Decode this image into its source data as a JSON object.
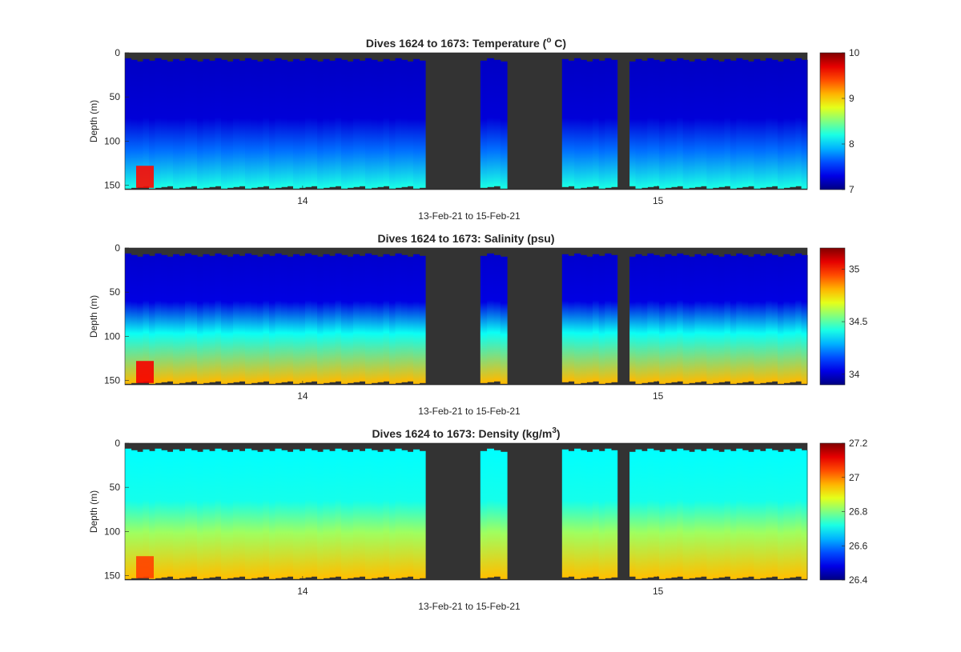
{
  "chart_data": [
    {
      "type": "heatmap",
      "title": "Dives 1624 to 1673: Temperature (",
      "title_sup": "o",
      "title_end": " C)",
      "xlabel": "13-Feb-21 to 15-Feb-21",
      "ylabel": "Depth (m)",
      "x_ticks": [
        "14",
        "15"
      ],
      "x_tick_values": [
        14,
        15
      ],
      "xlim": [
        13.5,
        15.42
      ],
      "y_ticks": [
        "0",
        "50",
        "100",
        "150"
      ],
      "y_tick_values": [
        0,
        50,
        100,
        150
      ],
      "ylim": [
        155,
        0
      ],
      "colorbar_ticks": [
        "7",
        "8",
        "9",
        "10"
      ],
      "colorbar_tick_values": [
        7,
        8,
        9,
        10
      ],
      "clim": [
        7,
        10
      ],
      "surface_value": 7.2,
      "bottom_value": 8.2,
      "layer_top_depth": 110,
      "hotspot_value": 9.6,
      "colormap": "jet",
      "nodata_color": "#333333"
    },
    {
      "type": "heatmap",
      "title": "Dives 1624 to 1673: Salinity (psu)",
      "xlabel": "13-Feb-21 to 15-Feb-21",
      "ylabel": "Depth (m)",
      "x_ticks": [
        "14",
        "15"
      ],
      "x_tick_values": [
        14,
        15
      ],
      "xlim": [
        13.5,
        15.42
      ],
      "y_ticks": [
        "0",
        "50",
        "100",
        "150"
      ],
      "y_tick_values": [
        0,
        50,
        100,
        150
      ],
      "ylim": [
        155,
        0
      ],
      "colorbar_ticks": [
        "34",
        "34.5",
        "35"
      ],
      "colorbar_tick_values": [
        34,
        34.5,
        35
      ],
      "clim": [
        33.9,
        35.2
      ],
      "surface_value": 34.0,
      "bottom_value": 34.8,
      "layer_top_depth": 95,
      "hotspot_value": 35.05,
      "colormap": "jet",
      "nodata_color": "#333333"
    },
    {
      "type": "heatmap",
      "title": "Dives 1624 to 1673: Density (kg/m",
      "title_sup": "3",
      "title_end": ")",
      "xlabel": "13-Feb-21 to 15-Feb-21",
      "ylabel": "Depth (m)",
      "x_ticks": [
        "14",
        "15"
      ],
      "x_tick_values": [
        14,
        15
      ],
      "xlim": [
        13.5,
        15.42
      ],
      "y_ticks": [
        "0",
        "50",
        "100",
        "150"
      ],
      "y_tick_values": [
        0,
        50,
        100,
        150
      ],
      "ylim": [
        155,
        0
      ],
      "colorbar_ticks": [
        "26.4",
        "26.6",
        "26.8",
        "27",
        "27.2"
      ],
      "colorbar_tick_values": [
        26.4,
        26.6,
        26.8,
        27,
        27.2
      ],
      "clim": [
        26.4,
        27.2
      ],
      "surface_value": 26.7,
      "bottom_value": 26.95,
      "layer_top_depth": 100,
      "hotspot_value": 27.05,
      "colormap": "jet",
      "nodata_color": "#333333"
    }
  ],
  "dive_segments": [
    {
      "start": 13.5,
      "end": 14.345
    },
    {
      "start": 14.5,
      "end": 14.575
    },
    {
      "start": 14.73,
      "end": 14.885
    },
    {
      "start": 14.92,
      "end": 15.42
    }
  ]
}
